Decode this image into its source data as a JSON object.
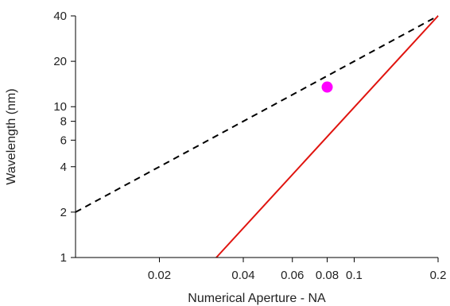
{
  "chart_data": {
    "type": "line",
    "title": "",
    "xlabel": "Numerical Aperture - NA",
    "ylabel": "Wavelength (nm)",
    "x_scale": "log",
    "y_scale": "log",
    "xlim": [
      0.01,
      0.2
    ],
    "ylim": [
      1,
      40
    ],
    "x_ticks": [
      {
        "value": 0.02,
        "label": "0.02"
      },
      {
        "value": 0.04,
        "label": "0.04"
      },
      {
        "value": 0.06,
        "label": "0.06"
      },
      {
        "value": 0.08,
        "label": "0.08"
      },
      {
        "value": 0.1,
        "label": "0.1"
      },
      {
        "value": 0.2,
        "label": "0.2"
      }
    ],
    "y_ticks": [
      {
        "value": 1,
        "label": "1"
      },
      {
        "value": 2,
        "label": "2"
      },
      {
        "value": 4,
        "label": "4"
      },
      {
        "value": 6,
        "label": "6"
      },
      {
        "value": 8,
        "label": "8"
      },
      {
        "value": 10,
        "label": "10"
      },
      {
        "value": 20,
        "label": "20"
      },
      {
        "value": 40,
        "label": "40"
      }
    ],
    "grid": false,
    "series": [
      {
        "kind": "line",
        "style": "dashed",
        "color": "#000000",
        "x": [
          0.01,
          0.2
        ],
        "y": [
          2,
          40
        ]
      },
      {
        "kind": "line",
        "style": "solid",
        "color": "#e0140f",
        "x": [
          0.032,
          0.2
        ],
        "y": [
          1,
          40
        ]
      },
      {
        "kind": "point",
        "color": "#ff00ff",
        "x": [
          0.08
        ],
        "y": [
          13.5
        ]
      }
    ]
  }
}
